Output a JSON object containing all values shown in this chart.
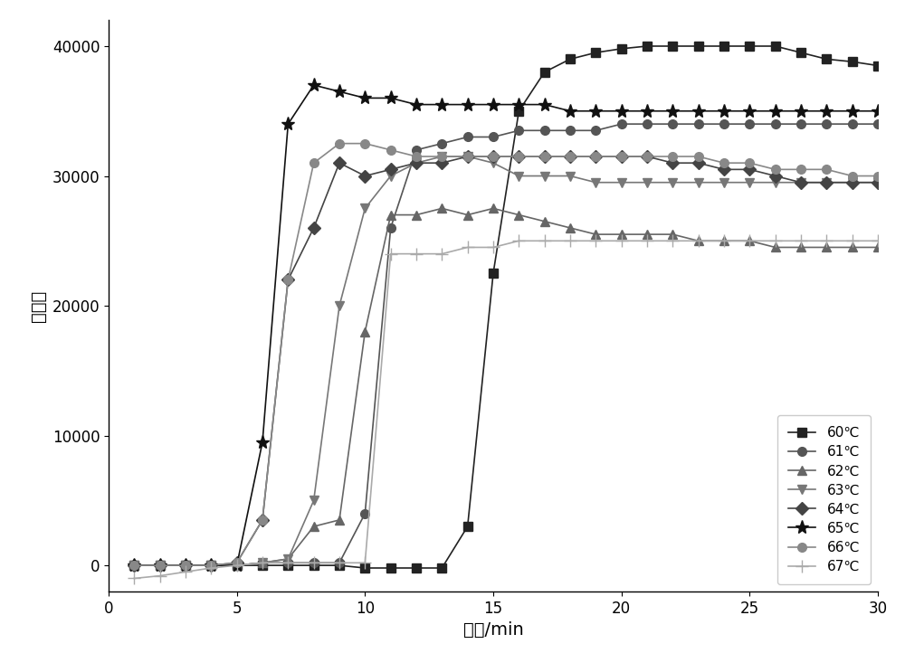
{
  "title": "",
  "xlabel": "时间/min",
  "ylabel": "荧光値",
  "xlim": [
    0,
    30
  ],
  "ylim": [
    -2000,
    42000
  ],
  "xticks": [
    0,
    5,
    10,
    15,
    20,
    25,
    30
  ],
  "yticks": [
    0,
    10000,
    20000,
    30000,
    40000
  ],
  "series": [
    {
      "label": "60℃",
      "marker": "s",
      "color": "#222222",
      "x": [
        1,
        2,
        3,
        4,
        5,
        6,
        7,
        8,
        9,
        10,
        11,
        12,
        13,
        14,
        15,
        16,
        17,
        18,
        19,
        20,
        21,
        22,
        23,
        24,
        25,
        26,
        27,
        28,
        29,
        30
      ],
      "y": [
        0,
        0,
        0,
        0,
        0,
        0,
        0,
        0,
        0,
        -200,
        -200,
        -200,
        -200,
        3000,
        22500,
        35000,
        38000,
        39000,
        39500,
        39800,
        40000,
        40000,
        40000,
        40000,
        40000,
        40000,
        39500,
        39000,
        38800,
        38500
      ]
    },
    {
      "label": "61℃",
      "marker": "o",
      "color": "#555555",
      "x": [
        1,
        2,
        3,
        4,
        5,
        6,
        7,
        8,
        9,
        10,
        11,
        12,
        13,
        14,
        15,
        16,
        17,
        18,
        19,
        20,
        21,
        22,
        23,
        24,
        25,
        26,
        27,
        28,
        29,
        30
      ],
      "y": [
        0,
        0,
        0,
        0,
        0,
        200,
        200,
        200,
        200,
        4000,
        26000,
        32000,
        32500,
        33000,
        33000,
        33500,
        33500,
        33500,
        33500,
        34000,
        34000,
        34000,
        34000,
        34000,
        34000,
        34000,
        34000,
        34000,
        34000,
        34000
      ]
    },
    {
      "label": "62℃",
      "marker": "^",
      "color": "#666666",
      "x": [
        1,
        2,
        3,
        4,
        5,
        6,
        7,
        8,
        9,
        10,
        11,
        12,
        13,
        14,
        15,
        16,
        17,
        18,
        19,
        20,
        21,
        22,
        23,
        24,
        25,
        26,
        27,
        28,
        29,
        30
      ],
      "y": [
        0,
        0,
        0,
        0,
        0,
        200,
        500,
        3000,
        3500,
        18000,
        27000,
        27000,
        27500,
        27000,
        27500,
        27000,
        26500,
        26000,
        25500,
        25500,
        25500,
        25500,
        25000,
        25000,
        25000,
        24500,
        24500,
        24500,
        24500,
        24500
      ]
    },
    {
      "label": "63℃",
      "marker": "v",
      "color": "#777777",
      "x": [
        1,
        2,
        3,
        4,
        5,
        6,
        7,
        8,
        9,
        10,
        11,
        12,
        13,
        14,
        15,
        16,
        17,
        18,
        19,
        20,
        21,
        22,
        23,
        24,
        25,
        26,
        27,
        28,
        29,
        30
      ],
      "y": [
        0,
        0,
        0,
        0,
        0,
        200,
        500,
        5000,
        20000,
        27500,
        30000,
        31000,
        31500,
        31500,
        31000,
        30000,
        30000,
        30000,
        29500,
        29500,
        29500,
        29500,
        29500,
        29500,
        29500,
        29500,
        29500,
        29500,
        29500,
        29500
      ]
    },
    {
      "label": "64℃",
      "marker": "D",
      "color": "#444444",
      "x": [
        1,
        2,
        3,
        4,
        5,
        6,
        7,
        8,
        9,
        10,
        11,
        12,
        13,
        14,
        15,
        16,
        17,
        18,
        19,
        20,
        21,
        22,
        23,
        24,
        25,
        26,
        27,
        28,
        29,
        30
      ],
      "y": [
        0,
        0,
        0,
        0,
        200,
        3500,
        22000,
        26000,
        31000,
        30000,
        30500,
        31000,
        31000,
        31500,
        31500,
        31500,
        31500,
        31500,
        31500,
        31500,
        31500,
        31000,
        31000,
        30500,
        30500,
        30000,
        29500,
        29500,
        29500,
        29500
      ]
    },
    {
      "label": "65℃",
      "marker": "*",
      "color": "#111111",
      "x": [
        1,
        2,
        3,
        4,
        5,
        6,
        7,
        8,
        9,
        10,
        11,
        12,
        13,
        14,
        15,
        16,
        17,
        18,
        19,
        20,
        21,
        22,
        23,
        24,
        25,
        26,
        27,
        28,
        29,
        30
      ],
      "y": [
        0,
        0,
        0,
        0,
        0,
        9500,
        34000,
        37000,
        36500,
        36000,
        36000,
        35500,
        35500,
        35500,
        35500,
        35500,
        35500,
        35000,
        35000,
        35000,
        35000,
        35000,
        35000,
        35000,
        35000,
        35000,
        35000,
        35000,
        35000,
        35000
      ]
    },
    {
      "label": "66℃",
      "marker": "o",
      "color": "#888888",
      "x": [
        1,
        2,
        3,
        4,
        5,
        6,
        7,
        8,
        9,
        10,
        11,
        12,
        13,
        14,
        15,
        16,
        17,
        18,
        19,
        20,
        21,
        22,
        23,
        24,
        25,
        26,
        27,
        28,
        29,
        30
      ],
      "y": [
        0,
        0,
        0,
        0,
        200,
        3500,
        22000,
        31000,
        32500,
        32500,
        32000,
        31500,
        31500,
        31500,
        31500,
        31500,
        31500,
        31500,
        31500,
        31500,
        31500,
        31500,
        31500,
        31000,
        31000,
        30500,
        30500,
        30500,
        30000,
        30000
      ]
    },
    {
      "label": "67℃",
      "marker": "+",
      "color": "#aaaaaa",
      "x": [
        1,
        2,
        3,
        4,
        5,
        6,
        7,
        8,
        9,
        10,
        11,
        12,
        13,
        14,
        15,
        16,
        17,
        18,
        19,
        20,
        21,
        22,
        23,
        24,
        25,
        26,
        27,
        28,
        29,
        30
      ],
      "y": [
        -1000,
        -800,
        -500,
        -200,
        0,
        200,
        200,
        200,
        200,
        200,
        24000,
        24000,
        24000,
        24500,
        24500,
        25000,
        25000,
        25000,
        25000,
        25000,
        25000,
        25000,
        25000,
        25000,
        25000,
        25000,
        25000,
        25000,
        25000,
        25000
      ]
    }
  ],
  "figure_bg": "#ffffff",
  "axes_bg": "#ffffff",
  "markersize": 7,
  "linewidth": 1.2,
  "font_size_labels": 14,
  "font_size_ticks": 12,
  "font_size_legend": 11
}
